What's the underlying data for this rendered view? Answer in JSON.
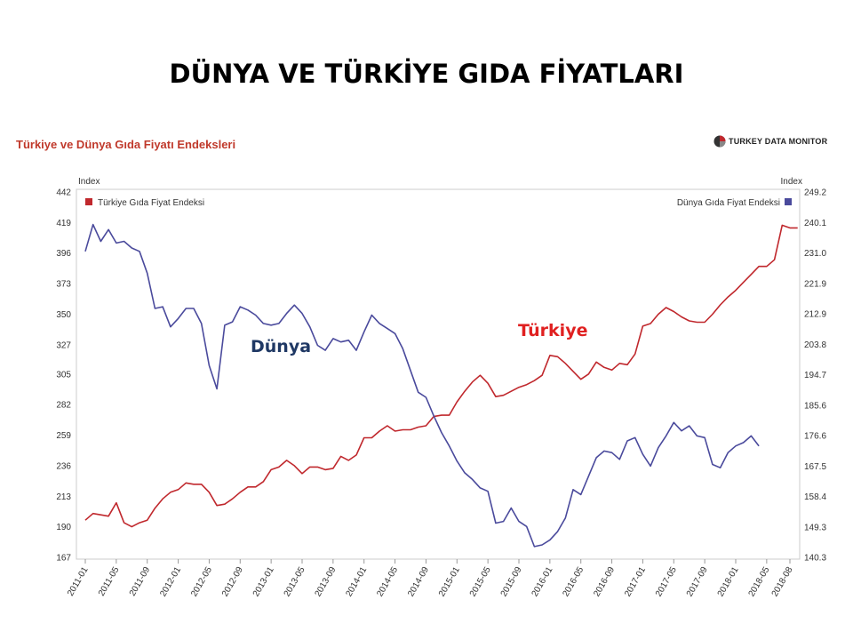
{
  "slide": {
    "title": "DÜNYA VE TÜRKİYE GIDA FİYATLARI"
  },
  "logo": {
    "text_a": "TURKEY DATA ",
    "text_b": "MONITOR",
    "icon": "turkey-data-monitor-logo-icon"
  },
  "chart_data": {
    "type": "line",
    "title": "Türkiye ve Dünya Gıda Fiyatı Endeksleri",
    "left_axis": {
      "title": "Index",
      "ticks": [
        167,
        190,
        213,
        236,
        259,
        282,
        305,
        327,
        350,
        373,
        396,
        419,
        442
      ]
    },
    "right_axis": {
      "title": "Index",
      "ticks": [
        "149.3",
        "158.4",
        "167.5",
        "176.6",
        "185.6",
        "194.7",
        "203.8",
        "212.9",
        "221.9",
        "231.0",
        "240.1",
        "249.2"
      ],
      "range": [
        140.3,
        249.2
      ]
    },
    "x_ticks": [
      "2011-01",
      "2011-05",
      "2011-09",
      "2012-01",
      "2012-05",
      "2012-09",
      "2013-01",
      "2013-05",
      "2013-09",
      "2014-01",
      "2014-05",
      "2014-09",
      "2015-01",
      "2015-05",
      "2015-09",
      "2016-01",
      "2016-05",
      "2016-09",
      "2017-01",
      "2017-05",
      "2017-09",
      "2018-01",
      "2018-05",
      "2018-08"
    ],
    "x_start": "2011-01",
    "grid": false,
    "legend": [
      {
        "name": "Türkiye Gıda Fiyat Endeksi",
        "position": "top-left",
        "color": "#c0282d"
      },
      {
        "name": "Dünya Gıda Fiyat Endeksi",
        "position": "top-right",
        "color": "#4a4a9c"
      }
    ],
    "annotations": [
      {
        "text": "Dünya",
        "color": "#1f3864"
      },
      {
        "text": "Türkiye",
        "color": "#e02020"
      }
    ],
    "series": [
      {
        "name": "Türkiye Gıda Fiyat Endeksi",
        "axis": "left",
        "color": "#c0282d",
        "values": [
          195,
          200,
          199,
          198,
          208,
          193,
          190,
          193,
          195,
          204,
          211,
          216,
          218,
          223,
          222,
          222,
          216,
          206,
          207,
          211,
          216,
          220,
          220,
          224,
          233,
          235,
          240,
          236,
          230,
          235,
          235,
          233,
          234,
          243,
          240,
          244,
          257,
          257,
          262,
          266,
          262,
          263,
          263,
          265,
          266,
          273,
          274,
          274,
          284,
          292,
          299,
          304,
          298,
          288,
          289,
          292,
          295,
          297,
          300,
          304,
          319,
          318,
          313,
          307,
          301,
          305,
          314,
          310,
          308,
          313,
          312,
          320,
          341,
          343,
          350,
          355,
          352,
          348,
          345,
          344,
          344,
          350,
          357,
          363,
          368,
          374,
          380,
          386,
          386,
          391,
          417,
          415,
          415
        ]
      },
      {
        "name": "Dünya Gıda Fiyat Endeksi",
        "axis": "right",
        "color": "#4a4a9c",
        "values": [
          231.5,
          239.5,
          234.5,
          238,
          234,
          234.5,
          232.5,
          231.5,
          225,
          214.5,
          215,
          209,
          211.5,
          214.5,
          214.5,
          210,
          197.5,
          190.5,
          209.5,
          210.5,
          215,
          214,
          212.5,
          210,
          209.5,
          210,
          213,
          215.5,
          213,
          209,
          203.5,
          202,
          205.5,
          204.5,
          205,
          202,
          207.5,
          212.5,
          210,
          208.5,
          207,
          202.5,
          196,
          189.5,
          188,
          182.5,
          177.5,
          173.5,
          169,
          165.5,
          163.5,
          161,
          160,
          150.5,
          151,
          155,
          151,
          149.5,
          143.5,
          144,
          145.5,
          148,
          152,
          160.5,
          159,
          164.5,
          170,
          172,
          171.5,
          169.5,
          175,
          176,
          171,
          167.5,
          173,
          176.5,
          180.5,
          178,
          179.5,
          176.5,
          176,
          168,
          167,
          171.5,
          173.5,
          174.5,
          176.5,
          173.5
        ]
      }
    ]
  }
}
